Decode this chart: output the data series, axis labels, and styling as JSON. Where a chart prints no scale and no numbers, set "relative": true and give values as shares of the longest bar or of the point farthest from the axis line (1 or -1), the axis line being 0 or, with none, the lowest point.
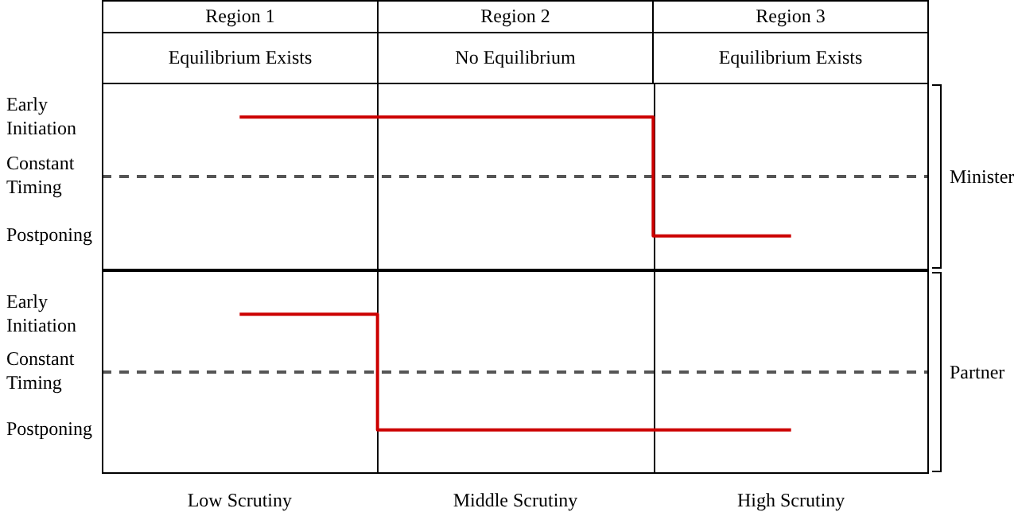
{
  "chart_data": [
    {
      "type": "step",
      "categories": [
        "Region 1",
        "Region 2",
        "Region 3"
      ],
      "annotations": [
        "Equilibrium Exists",
        "No Equilibrium",
        "Equilibrium Exists",
        "Early Initiation",
        "Constant Timing",
        "Postponing"
      ],
      "y2label": "Minister",
      "relative": true,
      "grid": "x",
      "series": [
        {
          "color": "#cc0000",
          "values": [
            1,
            1,
            0
          ]
        }
      ],
      "ref_lines": [
        {
          "axis": "y",
          "value": 0.5,
          "color": "#555555",
          "line_style": "dashed"
        }
      ]
    },
    {
      "type": "step",
      "categories": [
        "Low Scrutiny",
        "Middle Scrutiny",
        "High Scrutiny"
      ],
      "annotations": [
        "Early Initiation",
        "Constant Timing",
        "Postponing"
      ],
      "y2label": "Partner",
      "relative": true,
      "grid": "x",
      "series": [
        {
          "color": "#cc0000",
          "values": [
            1,
            0,
            0
          ]
        }
      ],
      "ref_lines": [
        {
          "axis": "y",
          "value": 0.5,
          "color": "#555555",
          "line_style": "dashed"
        }
      ]
    }
  ]
}
